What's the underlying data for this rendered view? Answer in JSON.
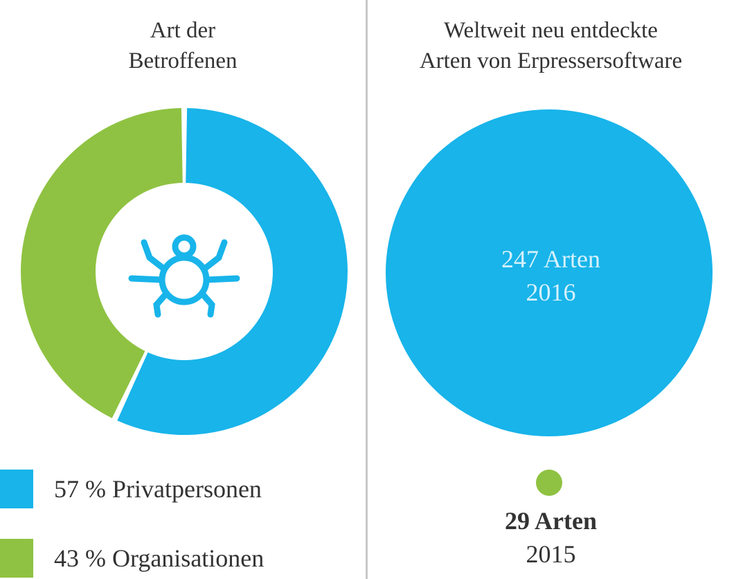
{
  "colors": {
    "blue": "#18b4ea",
    "green": "#8fc242",
    "divider": "#c8c8c8",
    "text": "#333333"
  },
  "left": {
    "title_line1": "Art der",
    "title_line2": "Betroffenen",
    "center_icon": "bug-icon"
  },
  "right": {
    "title_line1": "Weltweit neu entdeckte",
    "title_line2": "Arten von Erpressersoftware",
    "big_count": "247 Arten",
    "big_year": "2016",
    "small_count": "29 Arten",
    "small_year": "2015"
  },
  "chart_data": [
    {
      "type": "pie",
      "title": "Art der Betroffenen",
      "donut": true,
      "slices": [
        {
          "label": "Privatpersonen",
          "value": 57,
          "legend": "57 % Privatpersonen",
          "color": "#18b4ea"
        },
        {
          "label": "Organisationen",
          "value": 43,
          "legend": "43 % Organisationen",
          "color": "#8fc242"
        }
      ],
      "legend_placement": "bottom"
    },
    {
      "type": "scatter",
      "title": "Weltweit neu entdeckte Arten von Erpressersoftware",
      "chart_style": "bubble",
      "x": [
        "2016",
        "2015"
      ],
      "values": [
        247,
        29
      ],
      "labels": [
        "247 Arten",
        "29 Arten"
      ],
      "colors": [
        "#18b4ea",
        "#8fc242"
      ]
    }
  ]
}
